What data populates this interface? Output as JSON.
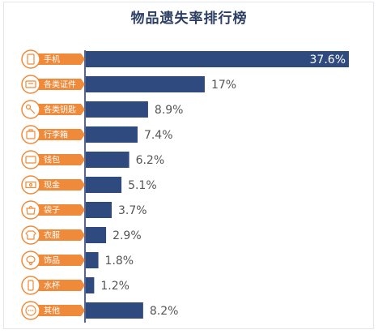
{
  "colors": {
    "bar": "#2e4a7e",
    "label_tag": "#ef8a3a",
    "icon_stroke": "#ef8a3a",
    "title": "#2c3e63"
  },
  "chart_data": {
    "type": "bar",
    "orientation": "horizontal",
    "title": "物品遗失率排行榜",
    "categories": [
      "手机",
      "各类证件",
      "各类钥匙",
      "行李箱",
      "钱包",
      "现金",
      "袋子",
      "衣服",
      "饰品",
      "水杯",
      "其他"
    ],
    "icons": [
      "phone-icon",
      "id-card-icon",
      "key-icon",
      "suitcase-icon",
      "wallet-icon",
      "cash-icon",
      "bag-icon",
      "shirt-icon",
      "jewelry-icon",
      "cup-icon",
      "more-icon"
    ],
    "values": [
      37.6,
      17,
      8.9,
      7.4,
      6.2,
      5.1,
      3.7,
      2.9,
      1.8,
      1.2,
      8.2
    ],
    "value_labels": [
      "37.6%",
      "17%",
      "8.9%",
      "7.4%",
      "6.2%",
      "5.1%",
      "3.7%",
      "2.9%",
      "1.8%",
      "1.2%",
      "8.2%"
    ],
    "xlim": [
      0,
      37.6
    ],
    "grid": false,
    "legend": "none"
  }
}
